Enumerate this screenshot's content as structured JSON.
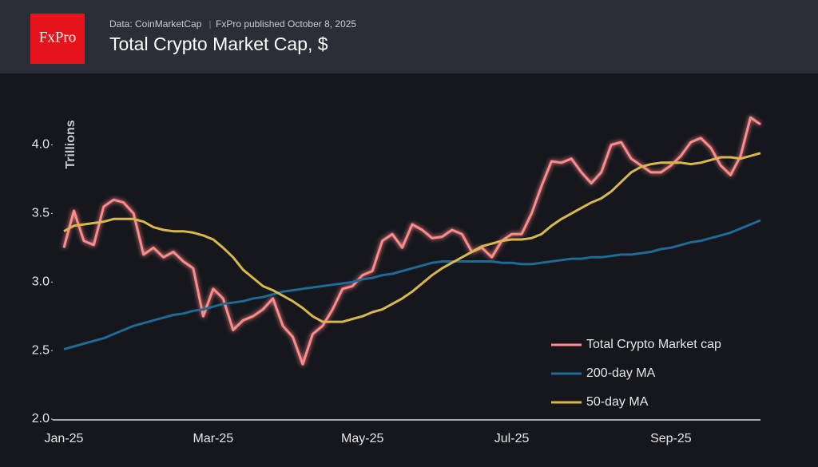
{
  "header": {
    "logo": "FxPro",
    "source": "Data: CoinMarketCap",
    "published": "FxPro published October 8, 2025"
  },
  "chart_data": {
    "type": "line",
    "title": "Total Crypto Market Cap, $",
    "y_label": "Trillions",
    "categories": [
      "Jan-25",
      null,
      null,
      null,
      null,
      null,
      null,
      null,
      null,
      null,
      null,
      null,
      null,
      null,
      null,
      "Mar-25",
      null,
      null,
      null,
      null,
      null,
      null,
      null,
      null,
      null,
      null,
      null,
      null,
      null,
      null,
      "May-25",
      null,
      null,
      null,
      null,
      null,
      null,
      null,
      null,
      null,
      null,
      null,
      null,
      null,
      null,
      "Jul-25",
      null,
      null,
      null,
      null,
      null,
      null,
      null,
      null,
      null,
      null,
      null,
      null,
      null,
      null,
      null,
      "Sep-25",
      null,
      null,
      null,
      null,
      null,
      null,
      null,
      null,
      null
    ],
    "ylim": [
      2.0,
      4.3
    ],
    "yticks": [
      {
        "value": 2,
        "label": "2.0"
      },
      2.5,
      {
        "value": 3,
        "label": "3.0"
      },
      3.5,
      {
        "value": 4,
        "label": "4.0"
      }
    ],
    "grid": false,
    "legend": "lower right",
    "series": [
      {
        "name": "Total Crypto Market cap",
        "color": "#ff8a8a",
        "values": [
          3.25,
          3.52,
          3.3,
          3.27,
          3.55,
          3.6,
          3.58,
          3.5,
          3.2,
          3.25,
          3.18,
          3.22,
          3.15,
          3.1,
          2.75,
          2.95,
          2.88,
          2.65,
          2.72,
          2.75,
          2.8,
          2.88,
          2.68,
          2.6,
          2.4,
          2.62,
          2.68,
          2.8,
          2.95,
          2.97,
          3.05,
          3.08,
          3.3,
          3.35,
          3.25,
          3.42,
          3.38,
          3.32,
          3.33,
          3.38,
          3.35,
          3.22,
          3.25,
          3.18,
          3.3,
          3.35,
          3.35,
          3.5,
          3.7,
          3.88,
          3.87,
          3.9,
          3.8,
          3.72,
          3.8,
          4.0,
          4.02,
          3.9,
          3.85,
          3.8,
          3.8,
          3.85,
          3.92,
          4.02,
          4.05,
          3.98,
          3.85,
          3.78,
          3.92,
          4.2,
          4.15
        ]
      },
      {
        "name": "200-day MA",
        "color": "#1f6a96",
        "values": [
          2.51,
          2.53,
          2.55,
          2.57,
          2.59,
          2.62,
          2.65,
          2.68,
          2.7,
          2.72,
          2.74,
          2.76,
          2.77,
          2.79,
          2.8,
          2.82,
          2.84,
          2.85,
          2.86,
          2.88,
          2.89,
          2.91,
          2.93,
          2.94,
          2.95,
          2.96,
          2.97,
          2.98,
          2.99,
          3.0,
          3.02,
          3.03,
          3.05,
          3.06,
          3.08,
          3.1,
          3.12,
          3.14,
          3.15,
          3.15,
          3.15,
          3.15,
          3.15,
          3.15,
          3.14,
          3.14,
          3.13,
          3.13,
          3.14,
          3.15,
          3.16,
          3.17,
          3.17,
          3.18,
          3.18,
          3.19,
          3.2,
          3.2,
          3.21,
          3.22,
          3.24,
          3.25,
          3.27,
          3.29,
          3.3,
          3.32,
          3.34,
          3.36,
          3.39,
          3.42,
          3.45
        ]
      },
      {
        "name": "50-day MA",
        "color": "#d8b84c",
        "values": [
          3.37,
          3.41,
          3.42,
          3.43,
          3.44,
          3.46,
          3.46,
          3.46,
          3.44,
          3.4,
          3.38,
          3.37,
          3.37,
          3.36,
          3.34,
          3.31,
          3.25,
          3.18,
          3.09,
          3.03,
          2.97,
          2.94,
          2.9,
          2.86,
          2.81,
          2.75,
          2.71,
          2.71,
          2.71,
          2.73,
          2.75,
          2.78,
          2.8,
          2.84,
          2.88,
          2.93,
          2.99,
          3.05,
          3.1,
          3.14,
          3.18,
          3.22,
          3.26,
          3.28,
          3.3,
          3.31,
          3.31,
          3.32,
          3.35,
          3.41,
          3.46,
          3.5,
          3.54,
          3.58,
          3.61,
          3.66,
          3.73,
          3.8,
          3.84,
          3.86,
          3.87,
          3.87,
          3.87,
          3.86,
          3.87,
          3.89,
          3.91,
          3.91,
          3.9,
          3.92,
          3.94
        ]
      }
    ]
  }
}
